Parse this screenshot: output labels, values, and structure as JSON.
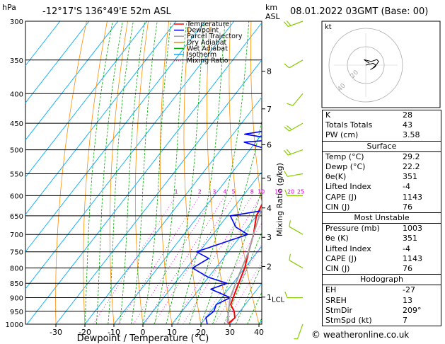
{
  "header": {
    "location": "-12°17'S  136°49'E  52m  ASL",
    "date": "08.01.2022  03GMT  (Base: 00)",
    "hpa_label": "hPa",
    "km_label": "km",
    "asl_label": "ASL"
  },
  "legend": {
    "items": [
      {
        "label": "Temperature",
        "color": "#ff0000",
        "style": "solid"
      },
      {
        "label": "Dewpoint",
        "color": "#0000ff",
        "style": "solid"
      },
      {
        "label": "Parcel Trajectory",
        "color": "#a0a0a0",
        "style": "solid"
      },
      {
        "label": "Dry Adiabat",
        "color": "#ff8000",
        "style": "solid"
      },
      {
        "label": "Wet Adiabat",
        "color": "#00b000",
        "style": "solid"
      },
      {
        "label": "Isotherm",
        "color": "#00b0ff",
        "style": "solid"
      },
      {
        "label": "Mixing Ratio",
        "color": "#ff00ff",
        "style": "dotted"
      }
    ]
  },
  "colors": {
    "temperature": "#ff0000",
    "dewpoint": "#0000ff",
    "parcel": "#a0a0a0",
    "dry_adiabat": "#ff8c00",
    "wet_adiabat": "#00aa00",
    "isotherm": "#00aaff",
    "mixing_ratio": "#dd00dd",
    "wind": "#88cc00"
  },
  "chart_data": {
    "type": "line",
    "title": "",
    "xlabel": "Dewpoint / Temperature (°C)",
    "ylabel": "hPa",
    "xlim": [
      -40,
      40
    ],
    "ylim": [
      1000,
      300
    ],
    "y_scale": "log",
    "x_ticks": [
      "-30",
      "-20",
      "-10",
      "0",
      "10",
      "20",
      "30",
      "40"
    ],
    "pressure_levels": [
      300,
      350,
      400,
      450,
      500,
      550,
      600,
      650,
      700,
      750,
      800,
      850,
      900,
      950,
      1000
    ],
    "km_ticks": [
      {
        "label": "8",
        "p": 366
      },
      {
        "label": "7",
        "p": 425
      },
      {
        "label": "6",
        "p": 490
      },
      {
        "label": "5",
        "p": 560
      },
      {
        "label": "4",
        "p": 630
      },
      {
        "label": "3",
        "p": 708
      },
      {
        "label": "2",
        "p": 795
      },
      {
        "label": "1",
        "p": 898
      }
    ],
    "lcl_label": "LCL",
    "mixing_ratio_axis_label": "Mixing Ratio (g/kg)",
    "mixing_ratio_values": [
      "1",
      "2",
      "3",
      "4",
      "5",
      "8",
      "10",
      "15",
      "20",
      "25"
    ],
    "series": [
      {
        "name": "Temperature",
        "points": [
          [
            29.2,
            1000
          ],
          [
            30,
            975
          ],
          [
            28,
            950
          ],
          [
            25,
            925
          ],
          [
            24,
            900
          ],
          [
            22,
            850
          ],
          [
            20,
            800
          ],
          [
            17,
            750
          ],
          [
            14,
            700
          ],
          [
            10,
            650
          ],
          [
            8,
            600
          ],
          [
            4,
            550
          ],
          [
            2,
            500
          ],
          [
            -1,
            450
          ],
          [
            -6,
            400
          ],
          [
            -12,
            350
          ],
          [
            -16,
            300
          ]
        ]
      },
      {
        "name": "Dewpoint",
        "points": [
          [
            22.2,
            1000
          ],
          [
            20,
            975
          ],
          [
            21,
            950
          ],
          [
            20,
            925
          ],
          [
            23,
            900
          ],
          [
            14,
            870
          ],
          [
            18,
            850
          ],
          [
            10,
            830
          ],
          [
            2,
            800
          ],
          [
            5,
            770
          ],
          [
            -1,
            750
          ],
          [
            12,
            700
          ],
          [
            6,
            680
          ],
          [
            1,
            650
          ],
          [
            16,
            630
          ],
          [
            13,
            610
          ],
          [
            12,
            570
          ],
          [
            14,
            550
          ],
          [
            10,
            540
          ],
          [
            12,
            525
          ],
          [
            1,
            515
          ],
          [
            4,
            500
          ],
          [
            -7,
            495
          ],
          [
            -14,
            485
          ],
          [
            -3,
            480
          ],
          [
            -16,
            470
          ],
          [
            -6,
            460
          ],
          [
            -7,
            440
          ],
          [
            -15,
            425
          ],
          [
            -4,
            410
          ],
          [
            -10,
            395
          ],
          [
            -13,
            380
          ],
          [
            -2,
            360
          ],
          [
            -16,
            355
          ],
          [
            -19,
            300
          ]
        ]
      },
      {
        "name": "Parcel Trajectory",
        "points": [
          [
            29.2,
            1000
          ],
          [
            26,
            950
          ],
          [
            23,
            900
          ],
          [
            21,
            850
          ],
          [
            19,
            800
          ],
          [
            17,
            750
          ],
          [
            14,
            700
          ],
          [
            11,
            650
          ],
          [
            8,
            600
          ],
          [
            5,
            550
          ],
          [
            1,
            500
          ],
          [
            -3,
            450
          ],
          [
            -7,
            400
          ],
          [
            -12,
            350
          ],
          [
            -17,
            300
          ]
        ]
      }
    ],
    "wind_profile": [
      {
        "p": 300,
        "dir": 250,
        "kt": 15
      },
      {
        "p": 350,
        "dir": 240,
        "kt": 10
      },
      {
        "p": 400,
        "dir": 220,
        "kt": 10
      },
      {
        "p": 450,
        "dir": 240,
        "kt": 15
      },
      {
        "p": 500,
        "dir": 250,
        "kt": 15
      },
      {
        "p": 550,
        "dir": 260,
        "kt": 10
      },
      {
        "p": 600,
        "dir": 270,
        "kt": 10
      },
      {
        "p": 700,
        "dir": 300,
        "kt": 10
      },
      {
        "p": 800,
        "dir": 300,
        "kt": 10
      },
      {
        "p": 900,
        "dir": 270,
        "kt": 10
      },
      {
        "p": 1000,
        "dir": 200,
        "kt": 5
      }
    ]
  },
  "hodograph": {
    "label": "kt",
    "ring_labels": [
      "20",
      "40"
    ],
    "trace": [
      [
        0,
        0
      ],
      [
        4,
        -1
      ],
      [
        8,
        -2
      ],
      [
        11,
        0
      ],
      [
        8,
        3
      ],
      [
        5,
        5
      ],
      [
        10,
        2
      ],
      [
        14,
        -4
      ],
      [
        12,
        -6
      ],
      [
        6,
        -4
      ],
      [
        -2,
        -6
      ],
      [
        4,
        -2
      ]
    ]
  },
  "indices": {
    "rows": [
      {
        "label": "K",
        "value": "28"
      },
      {
        "label": "Totals Totals",
        "value": "43"
      },
      {
        "label": "PW (cm)",
        "value": "3.58"
      }
    ]
  },
  "surface": {
    "title": "Surface",
    "rows": [
      {
        "label": "Temp (°C)",
        "value": "29.2"
      },
      {
        "label": "Dewp (°C)",
        "value": "22.2"
      },
      {
        "label": "θe(K)",
        "value": "351"
      },
      {
        "label": "Lifted Index",
        "value": "-4"
      },
      {
        "label": "CAPE (J)",
        "value": "1143"
      },
      {
        "label": "CIN (J)",
        "value": "76"
      }
    ]
  },
  "most_unstable": {
    "title": "Most Unstable",
    "rows": [
      {
        "label": "Pressure (mb)",
        "value": "1003"
      },
      {
        "label": "θe (K)",
        "value": "351"
      },
      {
        "label": "Lifted Index",
        "value": "-4"
      },
      {
        "label": "CAPE (J)",
        "value": "1143"
      },
      {
        "label": "CIN (J)",
        "value": "76"
      }
    ]
  },
  "hodograph_indices": {
    "title": "Hodograph",
    "rows": [
      {
        "label": "EH",
        "value": "-27"
      },
      {
        "label": "SREH",
        "value": "13"
      },
      {
        "label": "StmDir",
        "value": "209°"
      },
      {
        "label": "StmSpd (kt)",
        "value": "7"
      }
    ]
  },
  "footer": {
    "copyright": "©",
    "site": "weatheronline.co.uk"
  }
}
